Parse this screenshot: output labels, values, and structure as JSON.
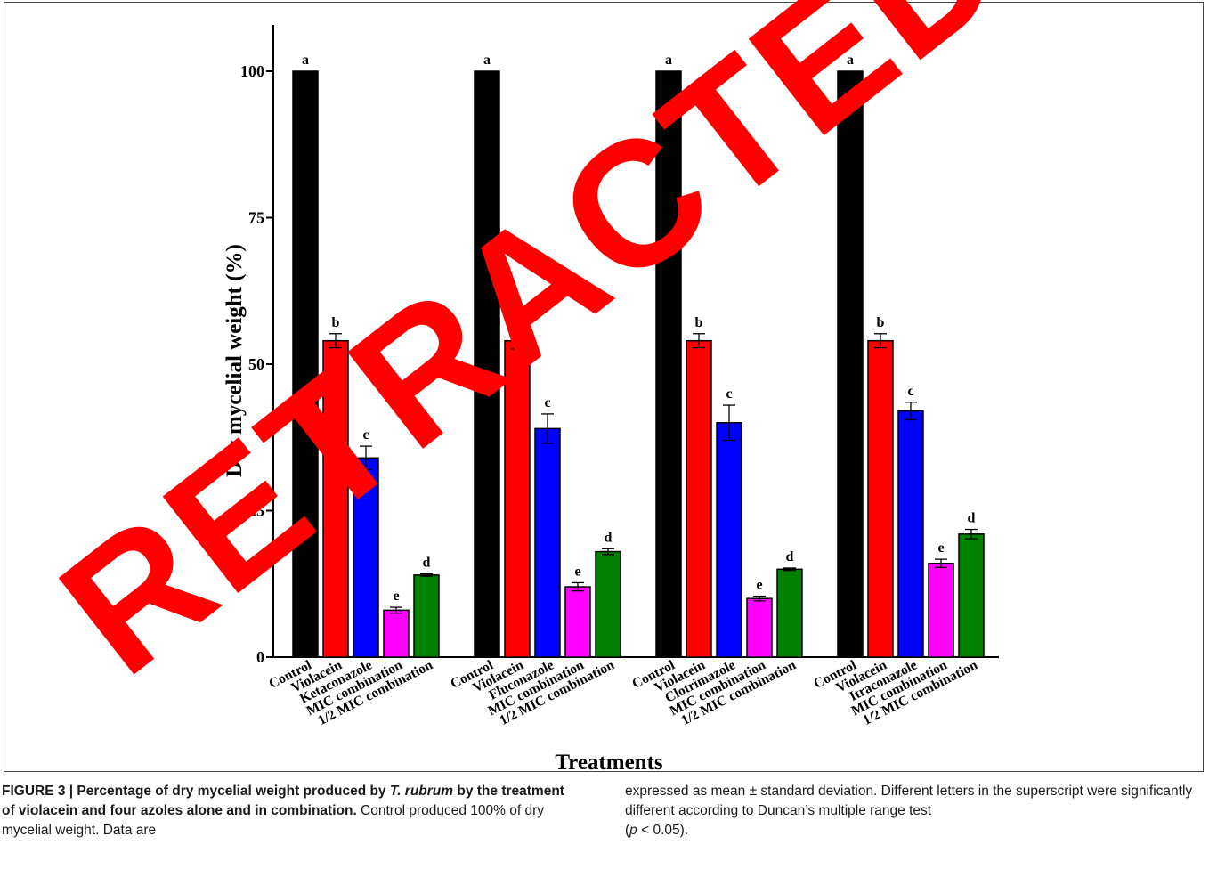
{
  "watermark": "RETRACTED",
  "chart_data": {
    "type": "bar",
    "xlabel": "Treatments",
    "ylabel": "Dry mycelial weight (%)",
    "ylim": [
      0,
      100
    ],
    "yticks": [
      "0",
      "25",
      "50",
      "75",
      "100"
    ],
    "colors": [
      "#000000",
      "#ff0000",
      "#0000ff",
      "#ff00ff",
      "#008000"
    ],
    "groups": [
      {
        "categories": [
          "Control",
          "Violacein",
          "Ketaconazole",
          "MIC combination",
          "1/2 MIC combination"
        ],
        "values": [
          100,
          54,
          34,
          8,
          14
        ],
        "errors": [
          0,
          1.2,
          2,
          0.5,
          0.2
        ],
        "letters": [
          "a",
          "b",
          "c",
          "e",
          "d"
        ]
      },
      {
        "categories": [
          "Control",
          "Violacein",
          "Fluconazole",
          "MIC combination",
          "1/2 MIC combination"
        ],
        "values": [
          100,
          54,
          39,
          12,
          18
        ],
        "errors": [
          0,
          1.4,
          2.5,
          0.7,
          0.5
        ],
        "letters": [
          "a",
          "b",
          "c",
          "e",
          "d"
        ]
      },
      {
        "categories": [
          "Control",
          "Violacein",
          "Clotrimazole",
          "MIC combination",
          "1/2 MIC combination"
        ],
        "values": [
          100,
          54,
          40,
          10,
          15
        ],
        "errors": [
          0,
          1.2,
          3,
          0.4,
          0.2
        ],
        "letters": [
          "a",
          "b",
          "c",
          "e",
          "d"
        ]
      },
      {
        "categories": [
          "Control",
          "Violacein",
          "Itraconazole",
          "MIC combination",
          "1/2 MIC combination"
        ],
        "values": [
          100,
          54,
          42,
          16,
          21
        ],
        "errors": [
          0,
          1.2,
          1.5,
          0.7,
          0.8
        ],
        "letters": [
          "a",
          "b",
          "c",
          "e",
          "d"
        ]
      }
    ]
  },
  "caption": {
    "title": "FIGURE 3 | Percentage of dry mycelial weight produced by ",
    "species": "T. rubrum",
    "title_rest": " by the treatment of violacein and four azoles alone and in combination.",
    "body_left": " Control produced 100% of dry mycelial weight. Data are",
    "body_right_1": "expressed as mean ± standard deviation. Different letters in the superscript were significantly different according to Duncan’s multiple range test",
    "body_right_2a": "(",
    "body_right_p": "p",
    "body_right_2b": " < 0.05)."
  }
}
